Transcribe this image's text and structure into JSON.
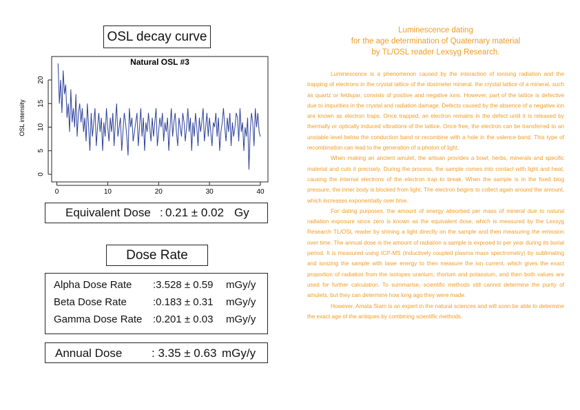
{
  "osl": {
    "title": "OSL decay curve"
  },
  "chart_data": {
    "type": "line",
    "title": "Natural OSL #3",
    "xlabel": "",
    "ylabel": "OSL intensity",
    "xlim": [
      0,
      40
    ],
    "ylim": [
      0,
      24
    ],
    "xticks": [
      "0",
      "10",
      "20",
      "30",
      "40"
    ],
    "yticks": [
      "0",
      "5",
      "10",
      "15",
      "20"
    ],
    "color": "#2b3f9a",
    "x": [
      0.25,
      0.5,
      0.75,
      1,
      1.25,
      1.5,
      1.75,
      2,
      2.25,
      2.5,
      2.75,
      3,
      3.25,
      3.5,
      3.75,
      4,
      4.25,
      4.5,
      4.75,
      5,
      5.25,
      5.5,
      5.75,
      6,
      6.25,
      6.5,
      6.75,
      7,
      7.25,
      7.5,
      7.75,
      8,
      8.25,
      8.5,
      8.75,
      9,
      9.25,
      9.5,
      9.75,
      10,
      10.25,
      10.5,
      10.75,
      11,
      11.25,
      11.5,
      11.75,
      12,
      12.25,
      12.5,
      12.75,
      13,
      13.25,
      13.5,
      13.75,
      14,
      14.25,
      14.5,
      14.75,
      15,
      15.25,
      15.5,
      15.75,
      16,
      16.25,
      16.5,
      16.75,
      17,
      17.25,
      17.5,
      17.75,
      18,
      18.25,
      18.5,
      18.75,
      19,
      19.25,
      19.5,
      19.75,
      20,
      20.25,
      20.5,
      20.75,
      21,
      21.25,
      21.5,
      21.75,
      22,
      22.25,
      22.5,
      22.75,
      23,
      23.25,
      23.5,
      23.75,
      24,
      24.25,
      24.5,
      24.75,
      25,
      25.25,
      25.5,
      25.75,
      26,
      26.25,
      26.5,
      26.75,
      27,
      27.25,
      27.5,
      27.75,
      28,
      28.25,
      28.5,
      28.75,
      29,
      29.25,
      29.5,
      29.75,
      30,
      30.25,
      30.5,
      30.75,
      31,
      31.25,
      31.5,
      31.75,
      32,
      32.25,
      32.5,
      32.75,
      33,
      33.25,
      33.5,
      33.75,
      34,
      34.25,
      34.5,
      34.75,
      35,
      35.25,
      35.5,
      35.75,
      36,
      36.25,
      36.5,
      36.75,
      37,
      37.25,
      37.5,
      37.75,
      38,
      38.25,
      38.5,
      38.75,
      39,
      39.25,
      39.5,
      39.75,
      40
    ],
    "y": [
      23.5,
      15,
      20,
      13,
      22,
      17,
      19,
      12,
      15,
      9,
      18,
      11,
      14,
      10,
      17,
      8,
      13,
      15,
      11,
      14,
      9,
      12,
      7,
      15,
      10,
      5,
      13,
      8,
      11,
      14,
      6,
      10,
      13,
      9,
      12,
      5,
      11,
      8,
      14,
      10,
      7,
      12,
      9,
      13,
      6,
      11,
      15,
      8,
      10,
      12,
      5,
      9,
      13,
      11,
      8,
      4,
      14,
      10,
      12,
      7,
      9,
      11,
      13,
      6,
      10,
      14,
      8,
      12,
      5,
      11,
      9,
      13,
      10,
      7,
      12,
      8,
      11,
      14,
      6,
      9,
      12,
      10,
      13,
      7,
      11,
      9,
      12,
      5,
      10,
      14,
      8,
      11,
      13,
      9,
      6,
      12,
      10,
      8,
      13,
      11,
      7,
      10,
      14,
      9,
      12,
      5,
      11,
      8,
      13,
      10,
      6,
      12,
      9,
      11,
      14,
      7,
      10,
      13,
      8,
      12,
      9,
      6,
      11,
      10,
      13,
      8,
      12,
      5,
      9,
      11,
      14,
      10,
      7,
      12,
      9,
      13,
      6,
      11,
      8,
      10,
      13,
      12,
      7,
      14,
      9,
      11,
      5,
      10,
      8,
      12,
      1,
      9,
      13,
      11,
      6,
      14,
      10,
      13,
      9,
      8
    ]
  },
  "equivalent_dose": {
    "label": "Equivalent Dose",
    "colon": ":",
    "value": "0.21 ± 0.02",
    "unit": "Gy"
  },
  "dose_rate": {
    "title": "Dose Rate",
    "rows": [
      {
        "label": "Alpha Dose Rate",
        "value": ":3.528 ± 0.59",
        "unit": "mGy/y"
      },
      {
        "label": "Beta Dose Rate",
        "value": ":0.183 ± 0.31",
        "unit": "mGy/y"
      },
      {
        "label": "Gamma Dose Rate",
        "value": ":0.201 ± 0.03",
        "unit": "mGy/y"
      }
    ]
  },
  "annual_dose": {
    "label": "Annual Dose",
    "value": ": 3.35 ± 0.63",
    "unit": "mGy/y"
  },
  "article": {
    "title_lines": [
      "Luminescence dating",
      "for the age determination of Quaternary material",
      "by TL/OSL reader Lexsyg Research."
    ],
    "paragraphs": [
      "Luminescence is a phenomenon caused by the interaction of ionising radiation and the trapping of electrons in the crystal lattice of the dosimeter mineral. the crystal lattice of a mineral, such as quartz or feldspar, consists of positive and negative ions. However, part of the lattice is defective due to impurities in the crystal and radiation damage. Defects caused by the absence of a negative ion are known as electron traps. Once trapped, an electron remains in the defect until it is released by thermally or optically induced vibrations of the lattice. Once free, the electron can be transferred to an unstable level below the conduction band or recombine with a hole in the valence band. This type of recombination can lead to the generation of a photon of light.",
      "When making an ancient amulet, the artisan provides a bowl, herbs, minerals and specific material and cuts it precisely. During the process, the sample comes into contact with light and heat, causing the internal electrons of the electron trap to break. When the sample is in the fixed blog pressure, the inner body is blocked from light. The electron begins to collect again around the amount, which increases exponentially over time.",
      "For dating purposes, the amount of energy absorbed per mass of mineral due to natural radiation exposure since zero is known as the equivalent dose, which is measured by the Lexsyg Research TL/OSL reader by shining a light directly on the sample and then measuring the emission over time. The annual dose is the amount of radiation a sample is exposed to per year during its burial period. It is measured using ICP-MS (inductively coupled plasma mass spectrometry) by sublimating and ionizing the sample with laser energy to then measure the ion current, which gives the exact proportion of radiation from the isotopes uranium, thorium and potassium, and then both values are used for further calculation. To summarise, scientific methods still cannot determine the purity of amulets, but they can determine how long ago they were made.",
      "However, Amata Siam is an expert in the natural sciences and will soon be able to determine the exact age of the antiques by combining scientific methods."
    ]
  }
}
